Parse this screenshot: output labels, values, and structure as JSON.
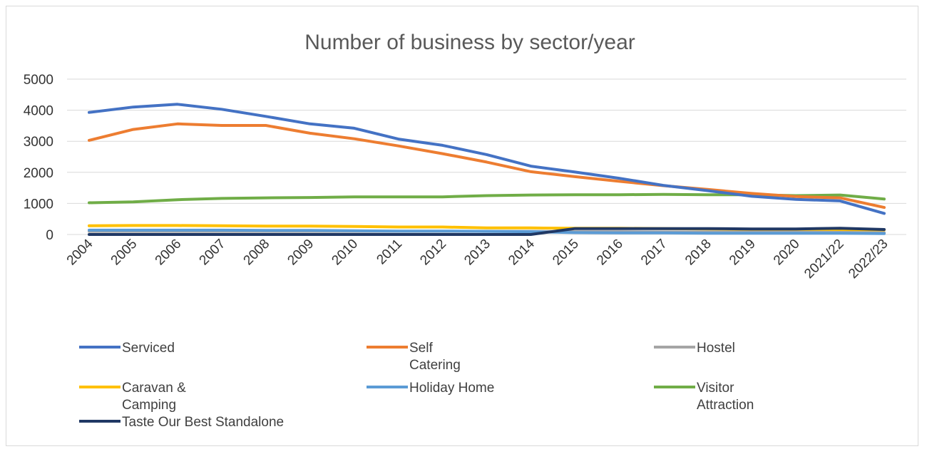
{
  "chart_data": {
    "type": "line",
    "title": "Number of business by sector/year",
    "xlabel": "",
    "ylabel": "",
    "categories": [
      "2004",
      "2005",
      "2006",
      "2007",
      "2008",
      "2009",
      "2010",
      "2011",
      "2012",
      "2013",
      "2014",
      "2015",
      "2016",
      "2017",
      "2018",
      "2019",
      "2020",
      "2021/22",
      "2022/23"
    ],
    "ylim": [
      0,
      5000
    ],
    "yticks": [
      0,
      1000,
      2000,
      3000,
      4000,
      5000
    ],
    "grid": true,
    "legend_position": "bottom",
    "series": [
      {
        "name": "Serviced",
        "color": "#4472c4",
        "values": [
          3930,
          4100,
          4190,
          4030,
          3800,
          3560,
          3420,
          3070,
          2870,
          2570,
          2200,
          2010,
          1810,
          1580,
          1410,
          1230,
          1130,
          1080,
          680
        ]
      },
      {
        "name": "Self Catering",
        "color": "#ed7d31",
        "values": [
          3030,
          3380,
          3560,
          3510,
          3510,
          3260,
          3080,
          2850,
          2600,
          2330,
          2020,
          1860,
          1710,
          1570,
          1450,
          1320,
          1220,
          1180,
          870
        ]
      },
      {
        "name": "Hostel",
        "color": "#a5a5a5",
        "values": [
          100,
          100,
          100,
          100,
          100,
          100,
          100,
          100,
          100,
          100,
          100,
          90,
          90,
          80,
          80,
          80,
          80,
          70,
          60
        ]
      },
      {
        "name": "Caravan & Camping",
        "color": "#ffc000",
        "values": [
          280,
          290,
          290,
          280,
          270,
          270,
          260,
          240,
          240,
          210,
          210,
          200,
          200,
          190,
          180,
          170,
          170,
          160,
          150
        ]
      },
      {
        "name": "Holiday Home",
        "color": "#5b9bd5",
        "values": [
          140,
          140,
          140,
          140,
          130,
          130,
          120,
          110,
          110,
          100,
          90,
          60,
          50,
          50,
          40,
          40,
          40,
          40,
          30
        ]
      },
      {
        "name": "Visitor Attraction",
        "color": "#70ad47",
        "values": [
          1020,
          1050,
          1120,
          1160,
          1180,
          1190,
          1210,
          1210,
          1210,
          1250,
          1270,
          1280,
          1280,
          1290,
          1280,
          1280,
          1250,
          1270,
          1140
        ]
      },
      {
        "name": "Taste Our Best Standalone",
        "color": "#203864",
        "values": [
          0,
          0,
          0,
          0,
          0,
          0,
          0,
          0,
          0,
          0,
          0,
          190,
          190,
          190,
          190,
          180,
          180,
          200,
          160
        ]
      }
    ]
  }
}
